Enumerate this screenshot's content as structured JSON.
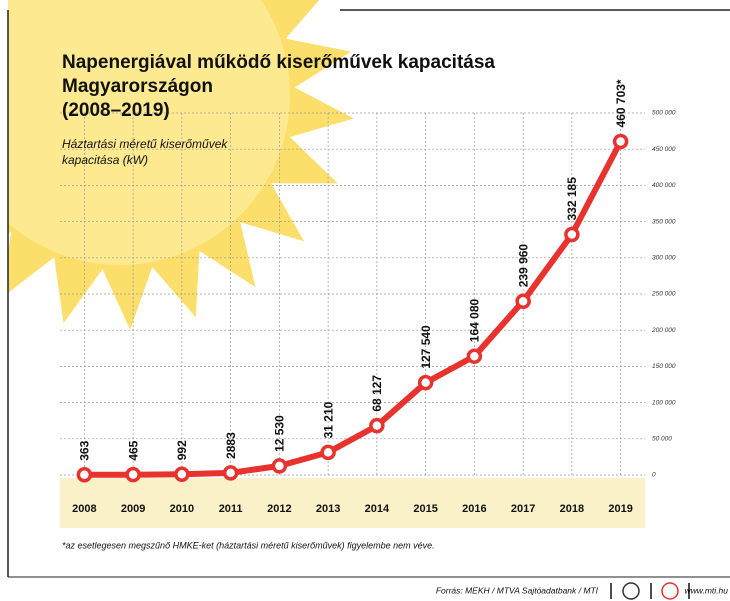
{
  "chart_data": {
    "type": "line",
    "title": [
      "Napenergiával működő kiserőművek kapacitása",
      "Magyarországon",
      "(2008–2019)"
    ],
    "subtitle": [
      "Háztartási méretű kiserőművek",
      "kapacitása (kW)"
    ],
    "categories": [
      "2008",
      "2009",
      "2010",
      "2011",
      "2012",
      "2013",
      "2014",
      "2015",
      "2016",
      "2017",
      "2018",
      "2019"
    ],
    "series": [
      {
        "color": "#e8322e",
        "values": [
          363,
          465,
          992,
          2883,
          12530,
          31210,
          68127,
          127540,
          164080,
          239960,
          332185,
          460703
        ],
        "value_labels": [
          "363",
          "465",
          "992",
          "2883",
          "12 530",
          "31 210",
          "68 127",
          "127 540",
          "164 080",
          "239 960",
          "332 185",
          "460 703*"
        ]
      }
    ],
    "ylim": [
      0,
      500000
    ],
    "yticks": [
      0,
      {
        "value": 50000,
        "label": "50 000"
      },
      {
        "value": 100000,
        "label": "100 000"
      },
      {
        "value": 150000,
        "label": "150 000"
      },
      {
        "value": 200000,
        "label": "200 000"
      },
      {
        "value": 250000,
        "label": "250 000"
      },
      {
        "value": 300000,
        "label": "300 000"
      },
      {
        "value": 350000,
        "label": "350 000"
      },
      {
        "value": 400000,
        "label": "400 000"
      },
      {
        "value": 450000,
        "label": "450 000"
      },
      {
        "value": 500000,
        "label": "500 000"
      }
    ],
    "grid": true,
    "footnote": "*az esetlegesen megszűnő HMKE-ket (háztartási méretű kiserőművek) figyelembe nem véve.",
    "source": "Forrás: MEKH / MTVA Sajtóadatbank / MTI",
    "website": "www.mti.hu"
  }
}
